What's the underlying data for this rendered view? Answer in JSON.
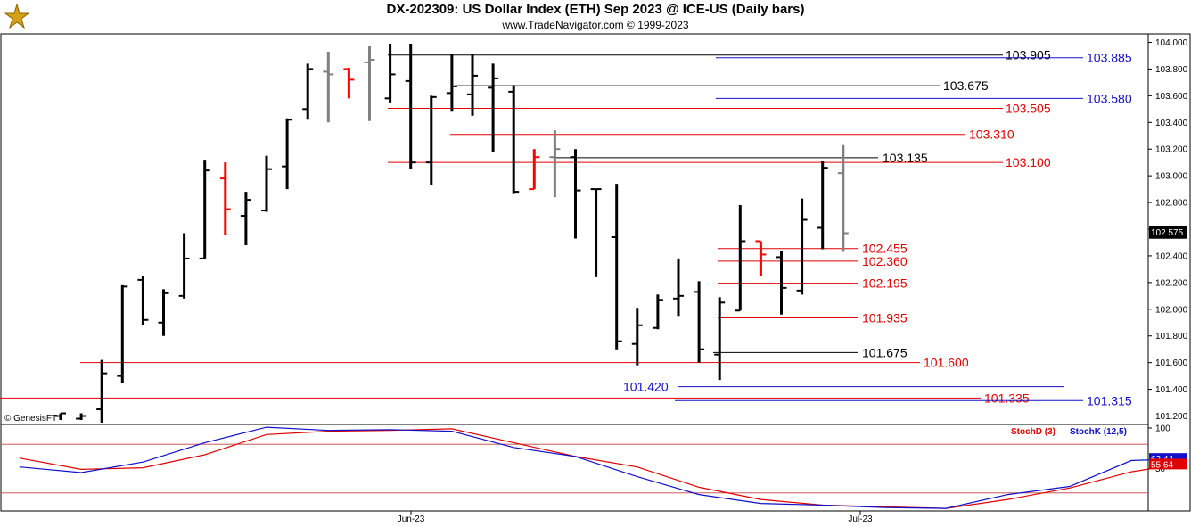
{
  "header": {
    "title": "DX-202309:  US Dollar Index (ETH) Sep 2023 @ ICE-US  (Daily bars)",
    "subtitle": "www.TradeNavigator.com © 1999-2023"
  },
  "colors": {
    "up": "#000000",
    "down": "#ff0000",
    "neutral": "#808080",
    "highlight": "#00cc00",
    "blue": "#1010c8",
    "red": "#e00000"
  },
  "chart_data": [
    {
      "type": "ohlc",
      "ylim": [
        101.15,
        104.05
      ],
      "y_ticks": [
        "101.200",
        "101.400",
        "101.600",
        "101.800",
        "102.000",
        "102.200",
        "102.400",
        "102.600",
        "102.800",
        "103.000",
        "103.200",
        "103.400",
        "103.600",
        "103.800",
        "104.000"
      ],
      "last_price": "102.575",
      "copyright": "© GenesisFT",
      "x_labels": [
        "Jun-23",
        "Jul-23"
      ],
      "bars": [
        {
          "o": 101.2,
          "h": 101.22,
          "l": 101.17,
          "c": 101.22,
          "color": "up"
        },
        {
          "o": 101.18,
          "h": 101.22,
          "l": 101.17,
          "c": 101.2,
          "color": "up"
        },
        {
          "o": 101.25,
          "h": 101.62,
          "l": 101.15,
          "c": 101.52,
          "color": "up"
        },
        {
          "o": 101.5,
          "h": 102.18,
          "l": 101.45,
          "c": 102.17,
          "color": "up"
        },
        {
          "o": 102.22,
          "h": 102.25,
          "l": 101.88,
          "c": 101.92,
          "color": "up"
        },
        {
          "o": 101.9,
          "h": 102.15,
          "l": 101.8,
          "c": 102.12,
          "color": "up"
        },
        {
          "o": 102.1,
          "h": 102.57,
          "l": 102.08,
          "c": 102.38,
          "color": "up"
        },
        {
          "o": 102.38,
          "h": 103.12,
          "l": 102.38,
          "c": 103.04,
          "color": "up"
        },
        {
          "o": 102.98,
          "h": 103.1,
          "l": 102.56,
          "c": 102.75,
          "color": "down"
        },
        {
          "o": 102.7,
          "h": 102.88,
          "l": 102.48,
          "c": 102.82,
          "color": "up"
        },
        {
          "o": 102.74,
          "h": 103.15,
          "l": 102.73,
          "c": 103.05,
          "color": "up"
        },
        {
          "o": 103.07,
          "h": 103.43,
          "l": 102.9,
          "c": 103.42,
          "color": "up"
        },
        {
          "o": 103.5,
          "h": 103.84,
          "l": 103.42,
          "c": 103.8,
          "color": "up"
        },
        {
          "o": 103.78,
          "h": 103.93,
          "l": 103.4,
          "c": 103.76,
          "color": "neutral"
        },
        {
          "o": 103.8,
          "h": 103.81,
          "l": 103.58,
          "c": 103.72,
          "color": "down"
        },
        {
          "o": 103.85,
          "h": 103.97,
          "l": 103.41,
          "c": 103.87,
          "color": "neutral"
        },
        {
          "o": 103.58,
          "h": 103.99,
          "l": 103.55,
          "c": 103.76,
          "color": "up"
        },
        {
          "o": 103.71,
          "h": 103.99,
          "l": 103.05,
          "c": 103.1,
          "color": "up"
        },
        {
          "o": 103.1,
          "h": 103.6,
          "l": 102.93,
          "c": 103.59,
          "color": "up"
        },
        {
          "o": 103.62,
          "h": 103.91,
          "l": 103.48,
          "c": 103.67,
          "color": "up"
        },
        {
          "o": 103.61,
          "h": 103.91,
          "l": 103.45,
          "c": 103.75,
          "color": "up"
        },
        {
          "o": 103.66,
          "h": 103.84,
          "l": 103.18,
          "c": 103.73,
          "color": "up"
        },
        {
          "o": 103.63,
          "h": 103.68,
          "l": 102.87,
          "c": 102.88,
          "color": "up"
        },
        {
          "o": 102.9,
          "h": 103.2,
          "l": 102.9,
          "c": 103.14,
          "color": "down"
        },
        {
          "o": 103.14,
          "h": 103.34,
          "l": 102.84,
          "c": 103.2,
          "color": "neutral"
        },
        {
          "o": 103.14,
          "h": 103.2,
          "l": 102.53,
          "c": 102.89,
          "color": "up"
        },
        {
          "o": 102.9,
          "h": 102.9,
          "l": 102.24,
          "c": 102.9,
          "color": "up"
        },
        {
          "o": 102.54,
          "h": 102.94,
          "l": 101.7,
          "c": 101.76,
          "color": "up"
        },
        {
          "o": 101.74,
          "h": 102.01,
          "l": 101.58,
          "c": 101.88,
          "color": "up"
        },
        {
          "o": 101.86,
          "h": 102.11,
          "l": 101.85,
          "c": 102.07,
          "color": "up"
        },
        {
          "o": 102.08,
          "h": 102.38,
          "l": 101.95,
          "c": 102.1,
          "color": "up"
        },
        {
          "o": 102.13,
          "h": 102.21,
          "l": 101.6,
          "c": 101.7,
          "color": "up"
        },
        {
          "o": 101.66,
          "h": 102.09,
          "l": 101.47,
          "c": 102.05,
          "color": "up"
        },
        {
          "o": 101.99,
          "h": 102.78,
          "l": 101.99,
          "c": 102.51,
          "color": "up"
        },
        {
          "o": 102.51,
          "h": 102.51,
          "l": 102.25,
          "c": 102.41,
          "color": "down"
        },
        {
          "o": 102.39,
          "h": 102.44,
          "l": 101.96,
          "c": 102.16,
          "color": "up"
        },
        {
          "o": 102.14,
          "h": 102.83,
          "l": 102.11,
          "c": 102.67,
          "color": "up"
        },
        {
          "o": 102.61,
          "h": 103.11,
          "l": 102.45,
          "c": 103.06,
          "color": "up"
        },
        {
          "o": 103.02,
          "h": 103.23,
          "l": 102.43,
          "c": 102.57,
          "color": "neutral"
        }
      ],
      "levels": [
        {
          "value": 103.905,
          "label": "103.905",
          "color": "#000000"
        },
        {
          "value": 103.885,
          "label": "103.885",
          "color": "#1010c8"
        },
        {
          "value": 103.675,
          "label": "103.675",
          "color": "#000000"
        },
        {
          "value": 103.58,
          "label": "103.580",
          "color": "#1010c8"
        },
        {
          "value": 103.505,
          "label": "103.505",
          "color": "#e00000"
        },
        {
          "value": 103.31,
          "label": "103.310",
          "color": "#e00000"
        },
        {
          "value": 103.135,
          "label": "103.135",
          "color": "#000000"
        },
        {
          "value": 103.1,
          "label": "103.100",
          "color": "#e00000"
        },
        {
          "value": 102.455,
          "label": "102.455",
          "color": "#e00000"
        },
        {
          "value": 102.36,
          "label": "102.360",
          "color": "#e00000"
        },
        {
          "value": 102.195,
          "label": "102.195",
          "color": "#e00000"
        },
        {
          "value": 101.935,
          "label": "101.935",
          "color": "#e00000"
        },
        {
          "value": 101.675,
          "label": "101.675",
          "color": "#000000"
        },
        {
          "value": 101.6,
          "label": "101.600",
          "color": "#e00000"
        },
        {
          "value": 101.42,
          "label": "101.420",
          "color": "#1010c8"
        },
        {
          "value": 101.335,
          "label": "101.335",
          "color": "#e00000"
        },
        {
          "value": 101.315,
          "label": "101.315",
          "color": "#1010c8"
        }
      ]
    },
    {
      "type": "line",
      "ylim": [
        0,
        100
      ],
      "y_ticks": [
        "100",
        "50"
      ],
      "legend": [
        "StochD (3)",
        "StochK (12,5)"
      ],
      "readouts": [
        "62.44",
        "55.64"
      ],
      "series": [
        {
          "name": "StochD (3)",
          "color": "#e00000",
          "values": [
            [
              0,
              63
            ],
            [
              3,
              49
            ],
            [
              6,
              51
            ],
            [
              9,
              67
            ],
            [
              12,
              92
            ],
            [
              15,
              96
            ],
            [
              18,
              97
            ],
            [
              21,
              99
            ],
            [
              24,
              82
            ],
            [
              27,
              65
            ],
            [
              30,
              52
            ],
            [
              33,
              27
            ],
            [
              36,
              12
            ],
            [
              39,
              5
            ],
            [
              42,
              3
            ],
            [
              45,
              1
            ],
            [
              48,
              12
            ],
            [
              51,
              26
            ],
            [
              54,
              46
            ],
            [
              56.5,
              56
            ]
          ]
        },
        {
          "name": "StochK (12,5)",
          "color": "#1010c8",
          "values": [
            [
              0,
              52
            ],
            [
              3,
              45
            ],
            [
              6,
              58
            ],
            [
              9,
              82
            ],
            [
              12,
              101
            ],
            [
              15,
              97
            ],
            [
              18,
              98
            ],
            [
              21,
              96
            ],
            [
              24,
              76
            ],
            [
              27,
              65
            ],
            [
              30,
              40
            ],
            [
              33,
              18
            ],
            [
              36,
              7
            ],
            [
              39,
              5
            ],
            [
              42,
              2
            ],
            [
              45,
              1
            ],
            [
              48,
              18
            ],
            [
              51,
              28
            ],
            [
              54,
              60
            ],
            [
              56.5,
              62
            ]
          ]
        }
      ]
    }
  ]
}
